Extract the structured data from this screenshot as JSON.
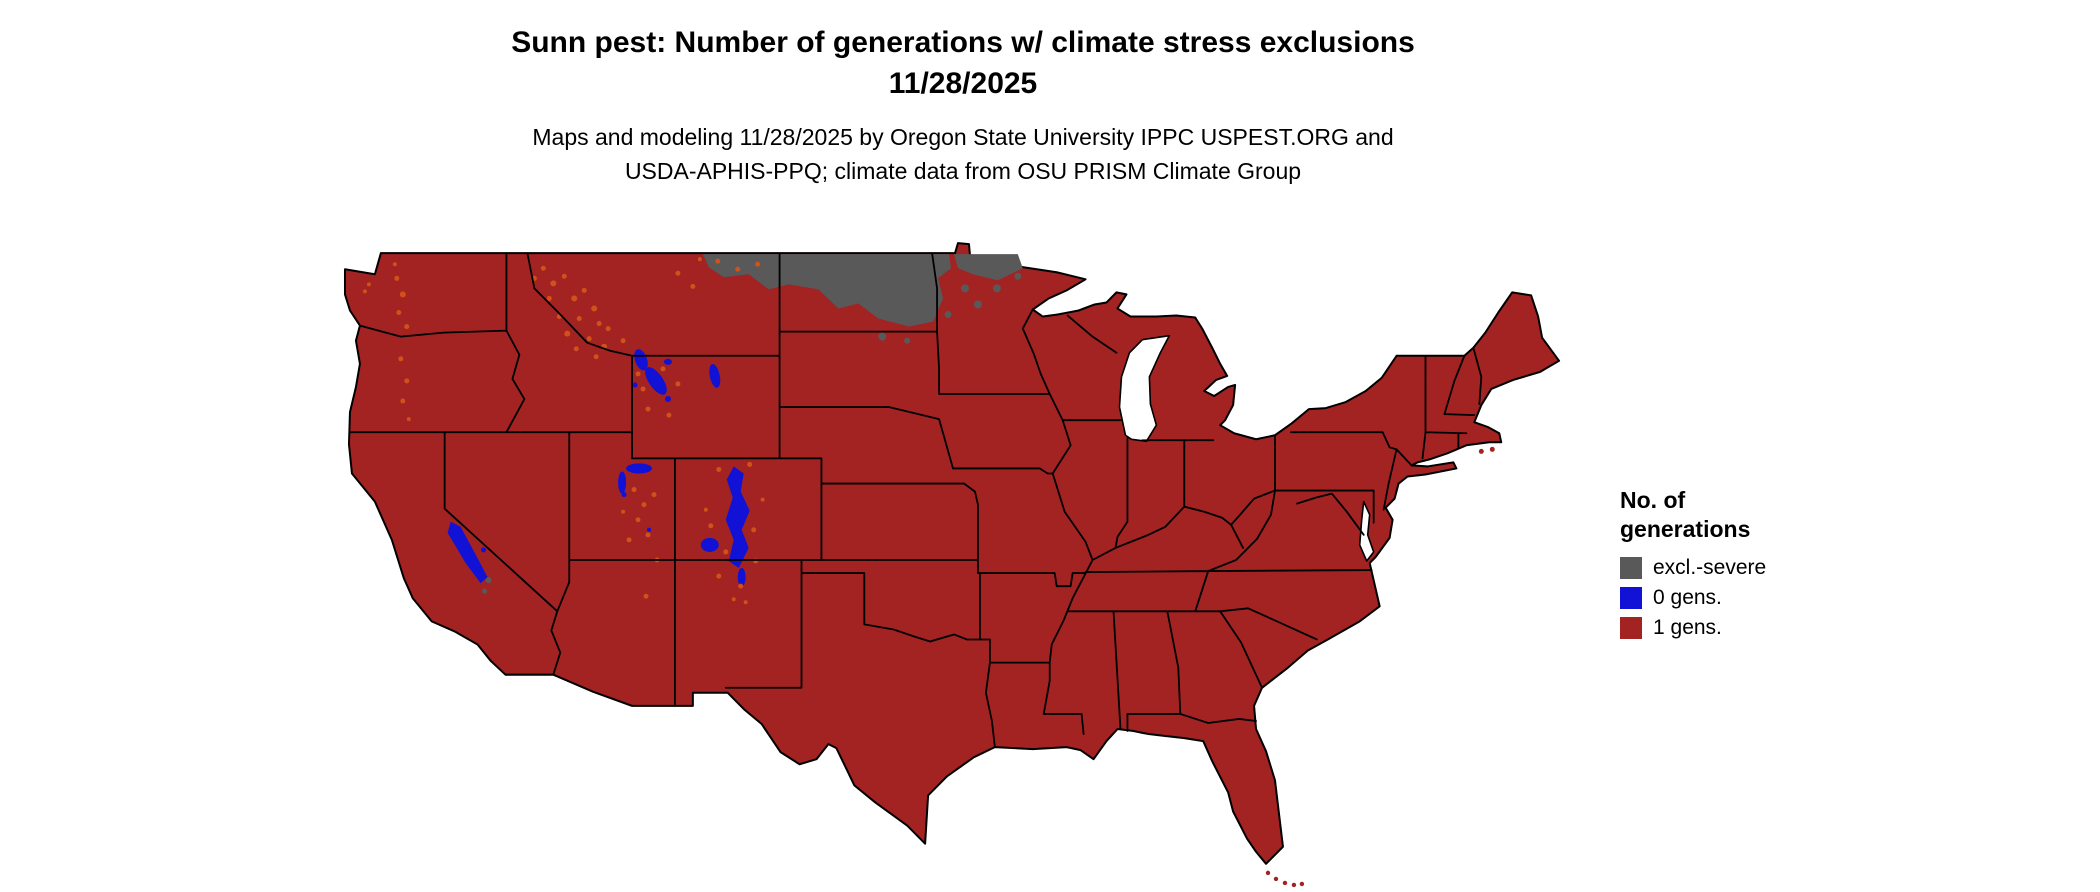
{
  "title": {
    "line1": "Sunn pest: Number of generations w/ climate stress exclusions",
    "line2": "11/28/2025"
  },
  "subtitle": {
    "line1": "Maps and modeling 11/28/2025 by Oregon State University IPPC USPEST.ORG and",
    "line2": "USDA-APHIS-PPQ; climate data from OSU PRISM Climate Group"
  },
  "legend": {
    "title_line1": "No. of",
    "title_line2": "generations",
    "items": [
      {
        "label": "excl.-severe",
        "color": "#595959"
      },
      {
        "label": "0 gens.",
        "color": "#1212d6"
      },
      {
        "label": "1 gens.",
        "color": "#a32222"
      }
    ]
  },
  "colors": {
    "one_gen": "#a32222",
    "zero_gen": "#1212d6",
    "excl_severe": "#595959",
    "speckle": "#d0521a",
    "border": "#000000",
    "background": "#ffffff"
  },
  "map": {
    "name": "Continental United States",
    "base_class": "1 gens.",
    "overlays": [
      {
        "name": "severe-exclusion-region",
        "legend_class": "excl.-severe"
      },
      {
        "name": "zero-generations-region",
        "legend_class": "0 gens."
      }
    ]
  }
}
